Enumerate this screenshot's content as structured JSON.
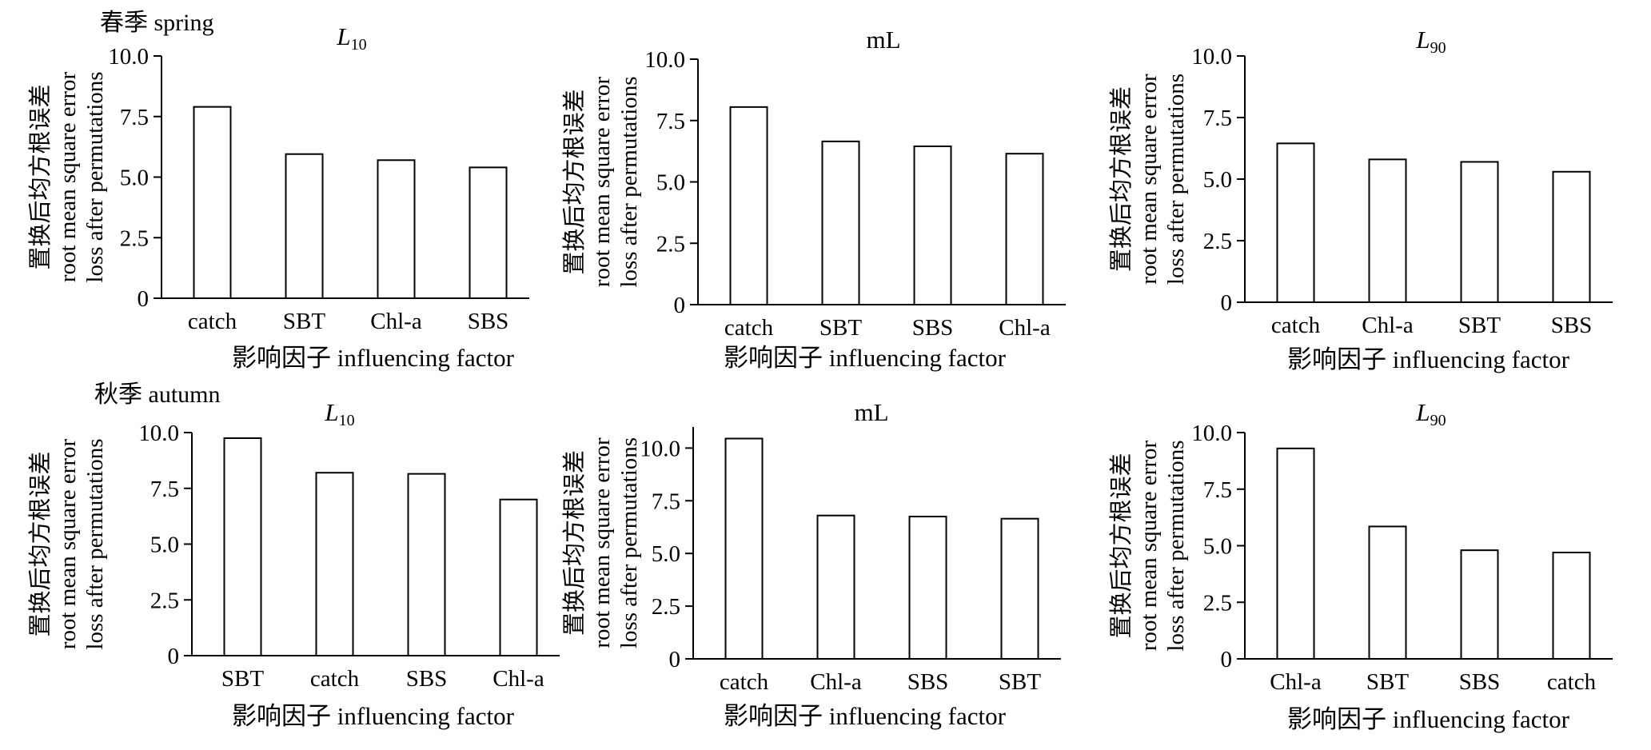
{
  "seasons": [
    "春季 spring",
    "秋季 autumn"
  ],
  "axis_labels": {
    "y": [
      "置换后均方根误差",
      "root mean square error",
      "loss after permutations"
    ],
    "x": "影响因子 influencing factor"
  },
  "colors": {
    "bar_fill": "#ffffff",
    "bar_stroke": "#000000",
    "axis": "#000000"
  },
  "chart_data": [
    {
      "type": "bar",
      "season": "spring",
      "title": "L",
      "title_subscript": "10",
      "categories": [
        "catch",
        "SBT",
        "Chl-a",
        "SBS"
      ],
      "values": [
        7.9,
        5.95,
        5.7,
        5.4
      ],
      "ylim": [
        0,
        10
      ],
      "yticks": [
        "0",
        "2.5",
        "5.0",
        "7.5",
        "10.0"
      ],
      "ylabel": "置换后均方根误差 root mean square error loss after permutations",
      "xlabel": "影响因子 influencing factor",
      "grid": false,
      "legend": "none"
    },
    {
      "type": "bar",
      "season": "spring",
      "title": "mL",
      "title_subscript": "",
      "categories": [
        "catch",
        "SBT",
        "SBS",
        "Chl-a"
      ],
      "values": [
        8.05,
        6.65,
        6.45,
        6.15
      ],
      "ylim": [
        0,
        10
      ],
      "yticks": [
        "0",
        "2.5",
        "5.0",
        "7.5",
        "10.0"
      ],
      "ylabel": "置换后均方根误差 root mean square error loss after permutations",
      "xlabel": "影响因子 influencing factor",
      "grid": false,
      "legend": "none"
    },
    {
      "type": "bar",
      "season": "spring",
      "title": "L",
      "title_subscript": "90",
      "categories": [
        "catch",
        "Chl-a",
        "SBT",
        "SBS"
      ],
      "values": [
        6.45,
        5.8,
        5.7,
        5.3
      ],
      "ylim": [
        0,
        10
      ],
      "yticks": [
        "0",
        "2.5",
        "5.0",
        "7.5",
        "10.0"
      ],
      "ylabel": "置换后均方根误差 root mean square error loss after permutations",
      "xlabel": "影响因子 influencing factor",
      "grid": false,
      "legend": "none"
    },
    {
      "type": "bar",
      "season": "autumn",
      "title": "L",
      "title_subscript": "10",
      "categories": [
        "SBT",
        "catch",
        "SBS",
        "Chl-a"
      ],
      "values": [
        9.75,
        8.2,
        8.15,
        7.0
      ],
      "ylim": [
        0,
        10
      ],
      "yticks": [
        "0",
        "2.5",
        "5.0",
        "7.5",
        "10.0"
      ],
      "ylabel": "置换后均方根误差 root mean square error loss after permutations",
      "xlabel": "影响因子 influencing factor",
      "grid": false,
      "legend": "none"
    },
    {
      "type": "bar",
      "season": "autumn",
      "title": "mL",
      "title_subscript": "",
      "categories": [
        "catch",
        "Chl-a",
        "SBS",
        "SBT"
      ],
      "values": [
        10.45,
        6.8,
        6.75,
        6.65
      ],
      "ylim": [
        0,
        11
      ],
      "yticks": [
        "0",
        "2.5",
        "5.0",
        "7.5",
        "10.0"
      ],
      "ylabel": "置换后均方根误差 root mean square error loss after permutations",
      "xlabel": "影响因子 influencing factor",
      "grid": false,
      "legend": "none"
    },
    {
      "type": "bar",
      "season": "autumn",
      "title": "L",
      "title_subscript": "90",
      "categories": [
        "Chl-a",
        "SBT",
        "SBS",
        "catch"
      ],
      "values": [
        9.3,
        5.85,
        4.8,
        4.7
      ],
      "ylim": [
        0,
        10
      ],
      "yticks": [
        "0",
        "2.5",
        "5.0",
        "7.5",
        "10.0"
      ],
      "ylabel": "置换后均方根误差 root mean square error loss after permutations",
      "xlabel": "影响因子 influencing factor",
      "grid": false,
      "legend": "none"
    }
  ]
}
